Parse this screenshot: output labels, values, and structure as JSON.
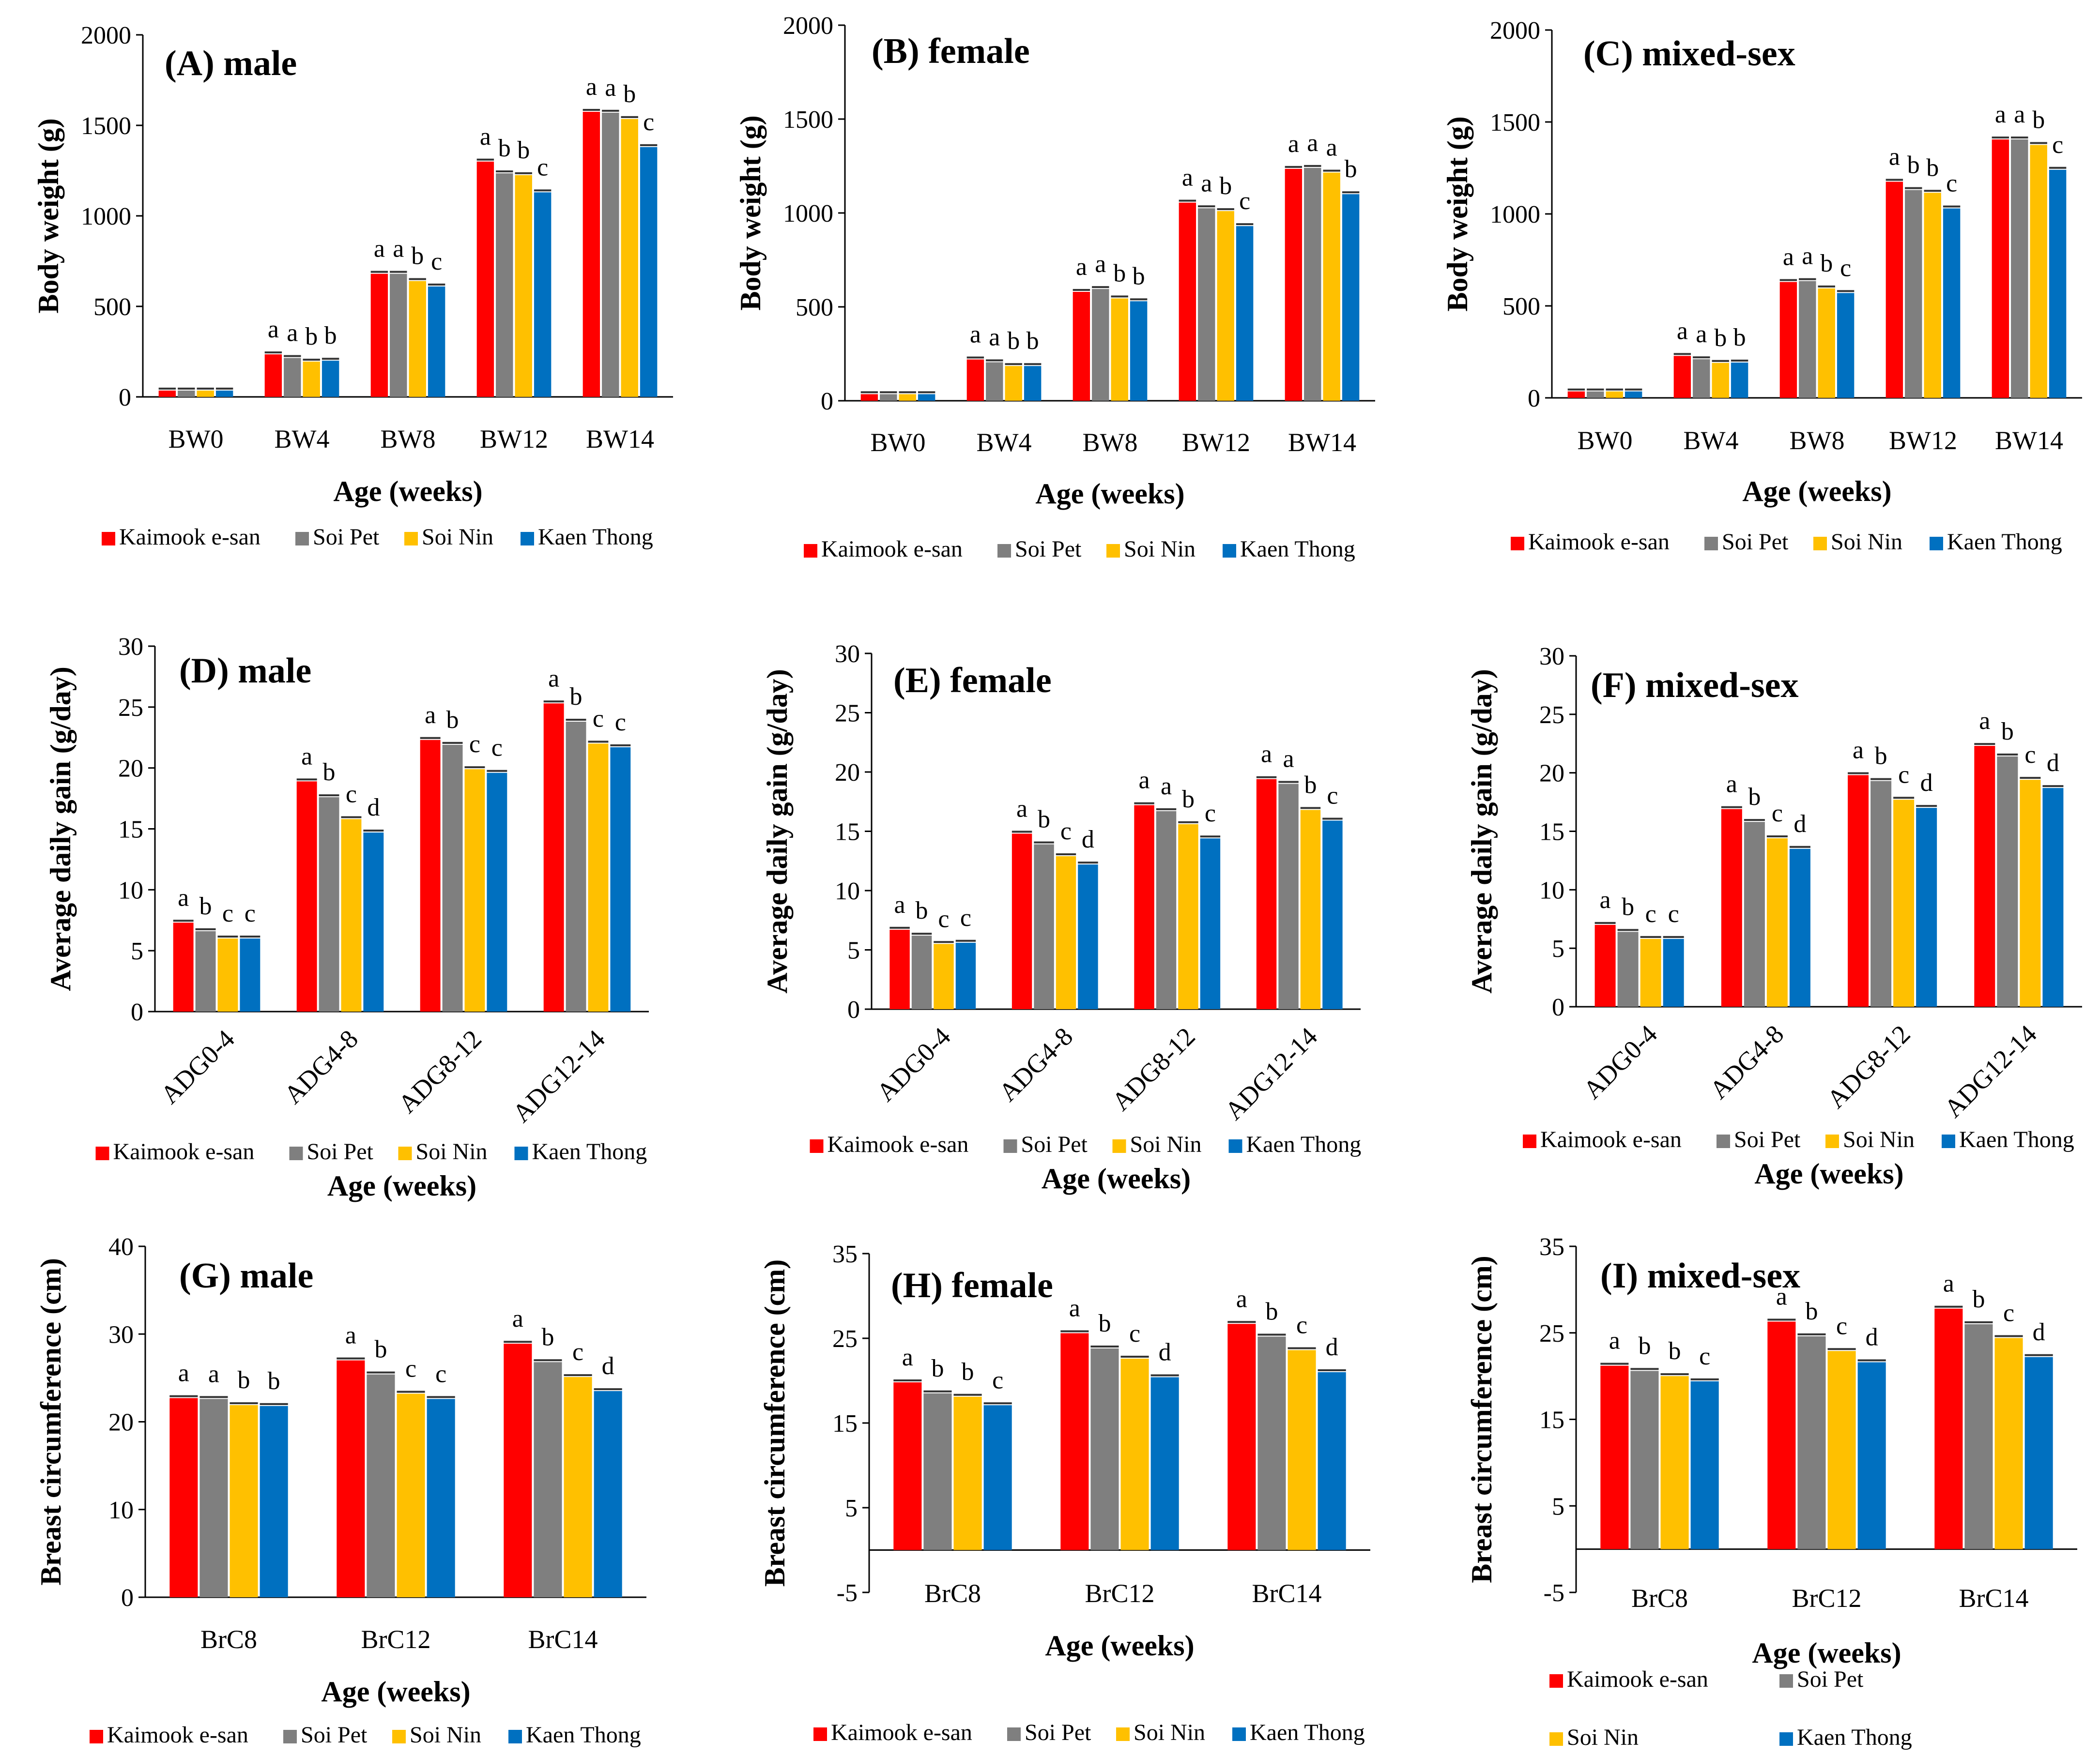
{
  "colors": {
    "Kaimook e-san": "#ff0000",
    "Soi Pet": "#7f7f7f",
    "Soi Nin": "#ffc000",
    "Kaen Thong": "#0070c0"
  },
  "breeds": [
    "Kaimook e-san",
    "Soi Pet",
    "Soi Nin",
    "Kaen Thong"
  ],
  "chart_data": [
    {
      "id": "A",
      "type": "bar",
      "title": "(A) male",
      "xlabel": "Age (weeks)",
      "ylabel": "Body weight (g)",
      "ylim": [
        0,
        2000
      ],
      "yticks": [
        0,
        500,
        1000,
        1500,
        2000
      ],
      "categories": [
        "BW0",
        "BW4",
        "BW8",
        "BW12",
        "BW14"
      ],
      "series": [
        {
          "name": "Kaimook e-san",
          "values": [
            35,
            235,
            680,
            1300,
            1575
          ]
        },
        {
          "name": "Soi Pet",
          "values": [
            35,
            215,
            680,
            1235,
            1570
          ]
        },
        {
          "name": "Soi Nin",
          "values": [
            35,
            195,
            640,
            1225,
            1535
          ]
        },
        {
          "name": "Kaen Thong",
          "values": [
            35,
            200,
            610,
            1130,
            1380
          ]
        }
      ],
      "letters": [
        [],
        [
          "a",
          "a",
          "b",
          "b"
        ],
        [
          "a",
          "a",
          "b",
          "c"
        ],
        [
          "a",
          "b",
          "b",
          "c"
        ],
        [
          "a",
          "a",
          "b",
          "c"
        ]
      ],
      "legend": [
        "Kaimook e-san",
        "Soi Pet",
        "Soi Nin",
        "Kaen Thong"
      ]
    },
    {
      "id": "B",
      "type": "bar",
      "title": "(B) female",
      "xlabel": "Age (weeks)",
      "ylabel": "Body weight (g)",
      "ylim": [
        0,
        2000
      ],
      "yticks": [
        0,
        500,
        1000,
        1500,
        2000
      ],
      "categories": [
        "BW0",
        "BW4",
        "BW8",
        "BW12",
        "BW14"
      ],
      "series": [
        {
          "name": "Kaimook e-san",
          "values": [
            35,
            220,
            580,
            1055,
            1235
          ]
        },
        {
          "name": "Soi Pet",
          "values": [
            35,
            205,
            595,
            1025,
            1240
          ]
        },
        {
          "name": "Soi Nin",
          "values": [
            35,
            185,
            545,
            1010,
            1215
          ]
        },
        {
          "name": "Kaen Thong",
          "values": [
            35,
            185,
            530,
            930,
            1100
          ]
        }
      ],
      "letters": [
        [],
        [
          "a",
          "a",
          "b",
          "b"
        ],
        [
          "a",
          "a",
          "b",
          "b"
        ],
        [
          "a",
          "a",
          "b",
          "c"
        ],
        [
          "a",
          "a",
          "a",
          "b"
        ]
      ],
      "legend": [
        "Kaimook e-san",
        "Soi Pet",
        "Soi Nin",
        "Kaen Thong"
      ]
    },
    {
      "id": "C",
      "type": "bar",
      "title": "(C) mixed-sex",
      "xlabel": "Age (weeks)",
      "ylabel": "Body weight (g)",
      "ylim": [
        0,
        2000
      ],
      "yticks": [
        0,
        500,
        1000,
        1500,
        2000
      ],
      "categories": [
        "BW0",
        "BW4",
        "BW8",
        "BW12",
        "BW14"
      ],
      "series": [
        {
          "name": "Kaimook e-san",
          "values": [
            35,
            228,
            630,
            1175,
            1405
          ]
        },
        {
          "name": "Soi Pet",
          "values": [
            35,
            210,
            635,
            1130,
            1405
          ]
        },
        {
          "name": "Soi Nin",
          "values": [
            35,
            190,
            595,
            1115,
            1375
          ]
        },
        {
          "name": "Kaen Thong",
          "values": [
            35,
            192,
            570,
            1030,
            1240
          ]
        }
      ],
      "letters": [
        [],
        [
          "a",
          "a",
          "b",
          "b"
        ],
        [
          "a",
          "a",
          "b",
          "c"
        ],
        [
          "a",
          "b",
          "b",
          "c"
        ],
        [
          "a",
          "a",
          "b",
          "c"
        ]
      ],
      "legend": [
        "Kaimook e-san",
        "Soi Pet",
        "Soi Nin",
        "Kaen Thong"
      ]
    },
    {
      "id": "D",
      "type": "bar",
      "title": "(D) male",
      "xlabel": "Age (weeks)",
      "ylabel": "Average daily gain (g/day)",
      "ylim": [
        0,
        30
      ],
      "yticks": [
        0,
        5,
        10,
        15,
        20,
        25,
        30
      ],
      "categories": [
        "ADG0-4",
        "ADG4-8",
        "ADG8-12",
        "ADG12-14"
      ],
      "rotate_labels": true,
      "series": [
        {
          "name": "Kaimook e-san",
          "values": [
            7.3,
            18.9,
            22.3,
            25.3
          ]
        },
        {
          "name": "Soi Pet",
          "values": [
            6.6,
            17.6,
            21.9,
            23.8
          ]
        },
        {
          "name": "Soi Nin",
          "values": [
            6.0,
            15.8,
            19.9,
            22.0
          ]
        },
        {
          "name": "Kaen Thong",
          "values": [
            6.0,
            14.7,
            19.6,
            21.7
          ]
        }
      ],
      "letters": [
        [
          "a",
          "b",
          "c",
          "c"
        ],
        [
          "a",
          "b",
          "c",
          "d"
        ],
        [
          "a",
          "b",
          "c",
          "c"
        ],
        [
          "a",
          "b",
          "c",
          "c"
        ]
      ],
      "legend": [
        "Kaimook e-san",
        "Soi Pet",
        "Soi Nin",
        "Kaen Thong"
      ]
    },
    {
      "id": "E",
      "type": "bar",
      "title": "(E) female",
      "xlabel": "Age (weeks)",
      "ylabel": "Average daily gain (g/day)",
      "ylim": [
        0,
        30
      ],
      "yticks": [
        0,
        5,
        10,
        15,
        20,
        25,
        30
      ],
      "categories": [
        "ADG0-4",
        "ADG4-8",
        "ADG8-12",
        "ADG12-14"
      ],
      "rotate_labels": true,
      "series": [
        {
          "name": "Kaimook e-san",
          "values": [
            6.7,
            14.8,
            17.2,
            19.4
          ]
        },
        {
          "name": "Soi Pet",
          "values": [
            6.2,
            13.9,
            16.7,
            19.0
          ]
        },
        {
          "name": "Soi Nin",
          "values": [
            5.5,
            12.9,
            15.6,
            16.8
          ]
        },
        {
          "name": "Kaen Thong",
          "values": [
            5.6,
            12.2,
            14.4,
            15.9
          ]
        }
      ],
      "letters": [
        [
          "a",
          "b",
          "c",
          "c"
        ],
        [
          "a",
          "b",
          "c",
          "d"
        ],
        [
          "a",
          "a",
          "b",
          "c"
        ],
        [
          "a",
          "a",
          "b",
          "c"
        ]
      ],
      "legend": [
        "Kaimook e-san",
        "Soi Pet",
        "Soi Nin",
        "Kaen Thong"
      ]
    },
    {
      "id": "F",
      "type": "bar",
      "title": "(F) mixed-sex",
      "xlabel": "Age (weeks)",
      "ylabel": "Average daily gain (g/day)",
      "ylim": [
        0,
        30
      ],
      "yticks": [
        0,
        5,
        10,
        15,
        20,
        25,
        30
      ],
      "categories": [
        "ADG0-4",
        "ADG4-8",
        "ADG8-12",
        "ADG12-14"
      ],
      "rotate_labels": true,
      "series": [
        {
          "name": "Kaimook e-san",
          "values": [
            7.0,
            16.9,
            19.8,
            22.3
          ]
        },
        {
          "name": "Soi Pet",
          "values": [
            6.4,
            15.8,
            19.3,
            21.4
          ]
        },
        {
          "name": "Soi Nin",
          "values": [
            5.8,
            14.4,
            17.7,
            19.4
          ]
        },
        {
          "name": "Kaen Thong",
          "values": [
            5.8,
            13.5,
            17.0,
            18.7
          ]
        }
      ],
      "letters": [
        [
          "a",
          "b",
          "c",
          "c"
        ],
        [
          "a",
          "b",
          "c",
          "d"
        ],
        [
          "a",
          "b",
          "c",
          "d"
        ],
        [
          "a",
          "b",
          "c",
          "d"
        ]
      ],
      "legend": [
        "Kaimook e-san",
        "Soi Pet",
        "Soi Nin",
        "Kaen Thong"
      ]
    },
    {
      "id": "G",
      "type": "bar",
      "title": "(G) male",
      "xlabel": "Age (weeks)",
      "ylabel": "Breast circumference (cm)",
      "ylim": [
        0,
        40
      ],
      "yticks": [
        0,
        10,
        20,
        30,
        40
      ],
      "categories": [
        "BrC8",
        "BrC12",
        "BrC14"
      ],
      "series": [
        {
          "name": "Kaimook e-san",
          "values": [
            22.7,
            27.0,
            28.9
          ]
        },
        {
          "name": "Soi Pet",
          "values": [
            22.6,
            25.4,
            26.8
          ]
        },
        {
          "name": "Soi Nin",
          "values": [
            21.9,
            23.2,
            25.1
          ]
        },
        {
          "name": "Kaen Thong",
          "values": [
            21.8,
            22.6,
            23.5
          ]
        }
      ],
      "letters": [
        [
          "a",
          "a",
          "b",
          "b"
        ],
        [
          "a",
          "b",
          "c",
          "c"
        ],
        [
          "a",
          "b",
          "c",
          "d"
        ]
      ],
      "legend": [
        "Kaimook e-san",
        "Soi Pet",
        "Soi Nin",
        "Kaen Thong"
      ]
    },
    {
      "id": "H",
      "type": "bar",
      "title": "(H) female",
      "xlabel": "Age (weeks)",
      "ylabel": "Breast circumference (cm)",
      "ylim": [
        -5,
        35
      ],
      "yticks": [
        -5,
        5,
        15,
        25,
        35
      ],
      "categories": [
        "BrC8",
        "BrC12",
        "BrC14"
      ],
      "series": [
        {
          "name": "Kaimook e-san",
          "values": [
            19.8,
            25.6,
            26.7
          ]
        },
        {
          "name": "Soi Pet",
          "values": [
            18.5,
            23.8,
            25.2
          ]
        },
        {
          "name": "Soi Nin",
          "values": [
            18.1,
            22.6,
            23.6
          ]
        },
        {
          "name": "Kaen Thong",
          "values": [
            17.1,
            20.4,
            21.0
          ]
        }
      ],
      "letters": [
        [
          "a",
          "b",
          "b",
          "c"
        ],
        [
          "a",
          "b",
          "c",
          "d"
        ],
        [
          "a",
          "b",
          "c",
          "d"
        ]
      ],
      "legend": [
        "Kaimook e-san",
        "Soi Pet",
        "Soi Nin",
        "Kaen Thong"
      ]
    },
    {
      "id": "I",
      "type": "bar",
      "title": "(I) mixed-sex",
      "xlabel": "Age (weeks)",
      "ylabel": "Breast circumference (cm)",
      "ylim": [
        -5,
        35
      ],
      "yticks": [
        -5,
        5,
        15,
        25,
        35
      ],
      "categories": [
        "BrC8",
        "BrC12",
        "BrC14"
      ],
      "series": [
        {
          "name": "Kaimook e-san",
          "values": [
            21.2,
            26.3,
            27.8
          ]
        },
        {
          "name": "Soi Pet",
          "values": [
            20.6,
            24.6,
            26.0
          ]
        },
        {
          "name": "Soi Nin",
          "values": [
            20.0,
            22.9,
            24.4
          ]
        },
        {
          "name": "Kaen Thong",
          "values": [
            19.4,
            21.6,
            22.2
          ]
        }
      ],
      "letters": [
        [
          "a",
          "b",
          "b",
          "c"
        ],
        [
          "a",
          "b",
          "c",
          "d"
        ],
        [
          "a",
          "b",
          "c",
          "d"
        ]
      ],
      "legend": [
        "Kaimook e-san",
        "Soi Pet",
        "Soi Nin",
        "Kaen Thong"
      ],
      "legend_two_rows": true
    }
  ]
}
